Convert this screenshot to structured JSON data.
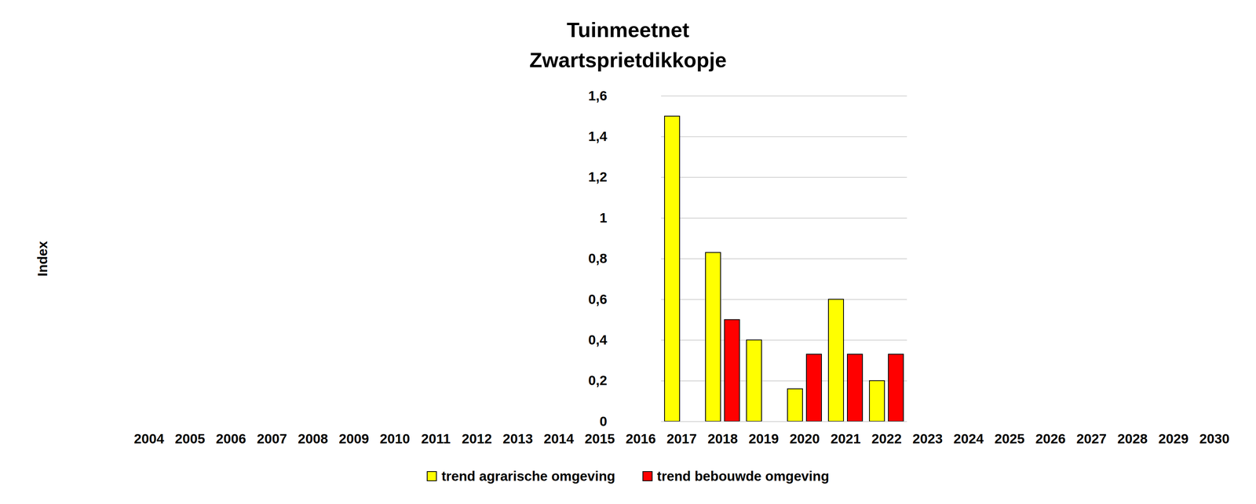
{
  "chart_data": {
    "type": "bar",
    "title": "Tuinmeetnet",
    "subtitle": "Zwartsprietdikkopje",
    "y_label": "Index",
    "categories": [
      2004,
      2005,
      2006,
      2007,
      2008,
      2009,
      2010,
      2011,
      2012,
      2013,
      2014,
      2015,
      2016,
      2017,
      2018,
      2019,
      2020,
      2021,
      2022,
      2023,
      2024,
      2025,
      2026,
      2027,
      2028,
      2029,
      2030
    ],
    "series": [
      {
        "name": "trend agrarische omgeving",
        "color": "#ffff00",
        "values": [
          null,
          null,
          null,
          null,
          null,
          null,
          null,
          null,
          null,
          null,
          null,
          null,
          null,
          1.5,
          0.83,
          0.4,
          0.16,
          0.6,
          0.2,
          null,
          null,
          null,
          null,
          null,
          null,
          null,
          null
        ]
      },
      {
        "name": "trend bebouwde omgeving",
        "color": "#ff0000",
        "values": [
          null,
          null,
          null,
          null,
          null,
          null,
          null,
          null,
          null,
          null,
          null,
          null,
          null,
          null,
          0.5,
          null,
          0.33,
          0.33,
          0.33,
          null,
          null,
          null,
          null,
          null,
          null,
          null,
          null
        ]
      }
    ],
    "ylim": [
      0,
      1.6
    ],
    "yticks": [
      0,
      {
        "value": 0.2,
        "label": "0,2"
      },
      {
        "value": 0.4,
        "label": "0,4"
      },
      {
        "value": 0.6,
        "label": "0,6"
      },
      {
        "value": 0.8,
        "label": "0,8"
      },
      1,
      {
        "value": 1.2,
        "label": "1,2"
      },
      {
        "value": 1.4,
        "label": "1,4"
      },
      {
        "value": 1.6,
        "label": "1,6"
      }
    ],
    "grid": true,
    "legend": "bottom"
  }
}
